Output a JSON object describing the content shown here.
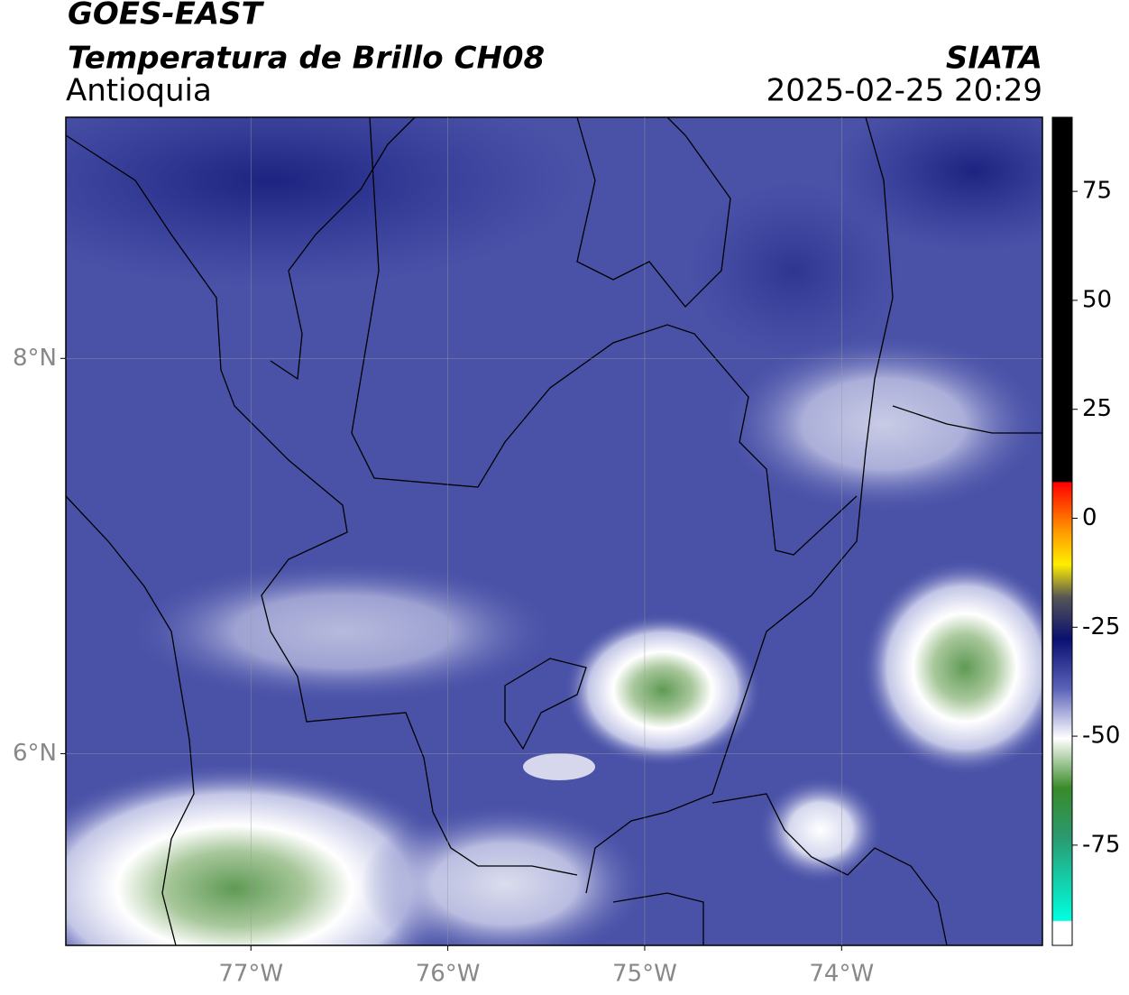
{
  "header": {
    "title": "GOES-EAST",
    "subtitle": "Temperatura de Brillo CH08",
    "region": "Antioquia",
    "organization": "SIATA",
    "timestamp": "2025-02-25 20:29"
  },
  "map": {
    "xlim": [
      -77.94,
      -72.98
    ],
    "ylim": [
      5.03,
      9.22
    ],
    "xticks": [
      {
        "value": -77,
        "label": "77°W"
      },
      {
        "value": -76,
        "label": "76°W"
      },
      {
        "value": -75,
        "label": "75°W"
      },
      {
        "value": -74,
        "label": "74°W"
      }
    ],
    "yticks": [
      {
        "value": 8,
        "label": "8°N"
      },
      {
        "value": 6,
        "label": "6°N"
      }
    ]
  },
  "colorbar": {
    "lim": [
      -98,
      92
    ],
    "ticks": [
      75,
      50,
      25,
      0,
      -25,
      -50,
      -75
    ]
  }
}
